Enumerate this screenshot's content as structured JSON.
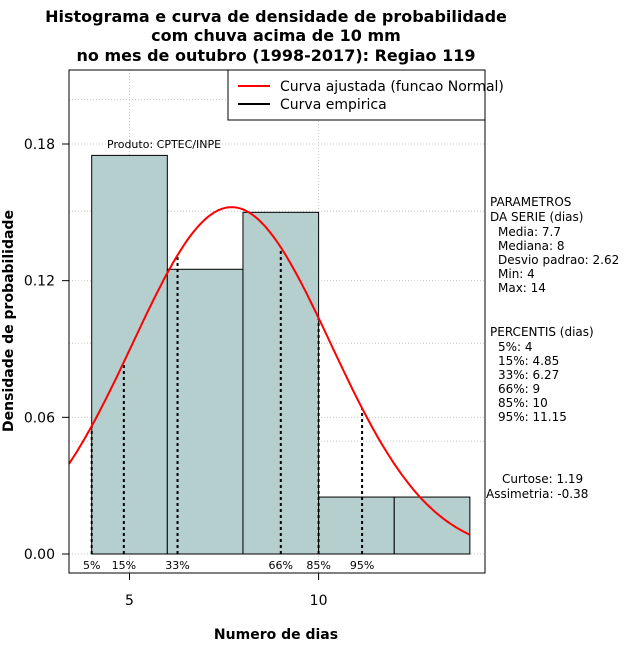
{
  "chart_data": {
    "type": "bar",
    "title_lines": [
      "Histograma e curva de densidade de probabilidade",
      "com chuva acima de 10 mm",
      "no mes de outubro (1998-2017): Regiao 119"
    ],
    "xlabel": "Numero de dias",
    "ylabel": "Densidade de probabilidade",
    "xlim": [
      3.4,
      14.4
    ],
    "ylim": [
      0,
      0.211
    ],
    "x_ticks": [
      5,
      10
    ],
    "y_ticks": [
      0.0,
      0.06,
      0.12,
      0.18
    ],
    "y_tick_labels": [
      "0.00",
      "0.06",
      "0.12",
      "0.18"
    ],
    "bins": [
      {
        "from": 4,
        "to": 6,
        "density": 0.175
      },
      {
        "from": 6,
        "to": 8,
        "density": 0.125
      },
      {
        "from": 8,
        "to": 10,
        "density": 0.15
      },
      {
        "from": 10,
        "to": 12,
        "density": 0.025
      },
      {
        "from": 12,
        "to": 14,
        "density": 0.025
      }
    ],
    "bar_color": "#b5cfcf",
    "normal_fit": {
      "mean": 7.7,
      "sd": 2.62,
      "color": "#ff0000"
    },
    "percentile_lines": [
      {
        "label": "5%",
        "x": 4
      },
      {
        "label": "15%",
        "x": 4.85
      },
      {
        "label": "33%",
        "x": 6.27
      },
      {
        "label": "66%",
        "x": 9
      },
      {
        "label": "85%",
        "x": 10
      },
      {
        "label": "95%",
        "x": 11.15
      }
    ],
    "legend": [
      {
        "label": "Curva ajustada (funcao Normal)",
        "color": "#ff0000"
      },
      {
        "label": "Curva empirica",
        "color": "#000000"
      }
    ],
    "legend_position": "top-right",
    "producer_note": "Produto: CPTEC/INPE",
    "grid": true
  },
  "side_panel": {
    "params_title_1": "PARAMETROS",
    "params_title_2": "DA SERIE (dias)",
    "params": [
      "Media: 7.7",
      "Mediana: 8",
      "Desvio padrao: 2.62",
      "Min: 4",
      "Max: 14"
    ],
    "percentis_title": "PERCENTIS (dias)",
    "percentis": [
      "5%: 4",
      "15%: 4.85",
      "33%: 6.27",
      "66%: 9",
      "85%: 10",
      "95%: 11.15"
    ],
    "curtose": "Curtose: 1.19",
    "assimetria": "Assimetria: -0.38"
  }
}
